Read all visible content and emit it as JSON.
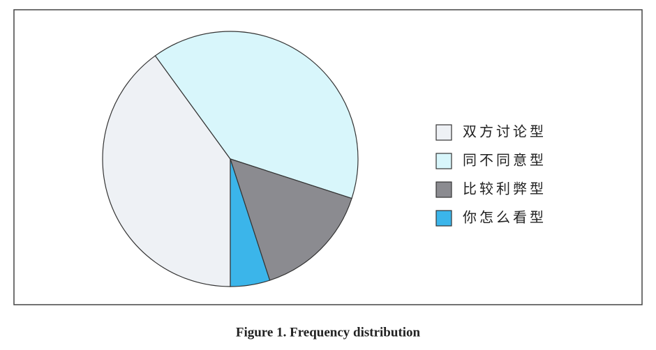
{
  "chart_data": {
    "type": "pie",
    "title": "Figure 1.  Frequency distribution",
    "categories": [
      "双方讨论型",
      "同不同意型",
      "比较利弊型",
      "你怎么看型"
    ],
    "values": [
      40,
      40,
      15,
      5
    ],
    "colors": [
      "#eef1f5",
      "#d8f6fb",
      "#8b8b90",
      "#3bb5ea"
    ],
    "legend": "right"
  }
}
